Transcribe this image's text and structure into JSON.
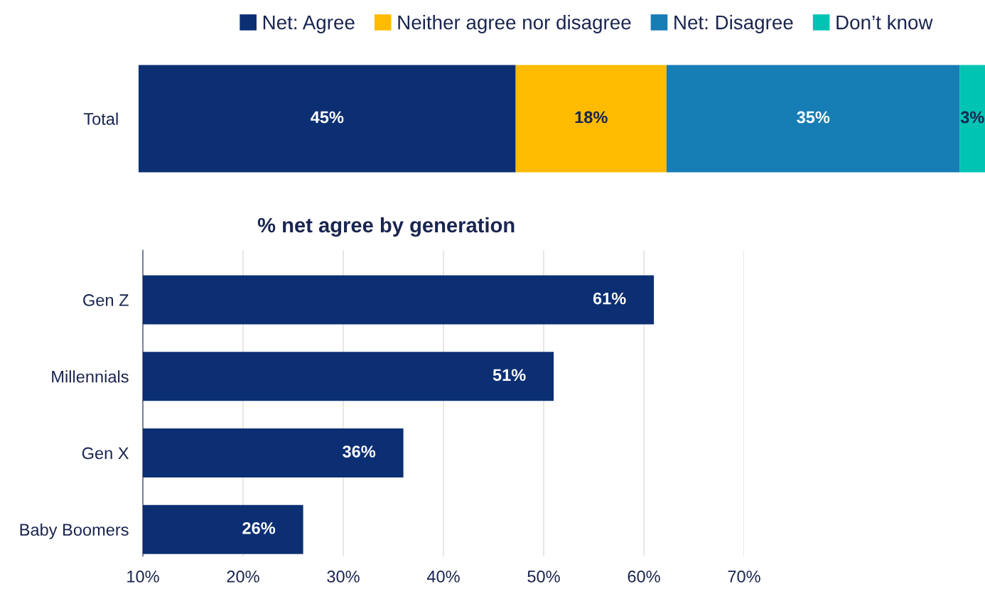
{
  "chart_data": [
    {
      "type": "bar",
      "orientation": "horizontal",
      "stacked": true,
      "categories": [
        "Total"
      ],
      "tick_labels": "y",
      "legend": "top right",
      "grid": false,
      "series": [
        {
          "name": "Net: Agree",
          "color": "#0c2f73",
          "values": [
            45
          ],
          "value_labels": [
            "45%"
          ]
        },
        {
          "name": "Neither agree nor disagree",
          "color": "#ffbb00",
          "values": [
            18
          ],
          "value_labels": [
            "18%"
          ]
        },
        {
          "name": "Net: Disagree",
          "color": "#167db5",
          "values": [
            35
          ],
          "value_labels": [
            "35%"
          ]
        },
        {
          "name": "Don’t know",
          "color": "#00c4b3",
          "values": [
            3
          ],
          "value_labels": [
            "3%"
          ]
        }
      ]
    },
    {
      "type": "bar",
      "orientation": "horizontal",
      "title": "% net agree by generation",
      "categories": [
        "Gen Z",
        "Millennials",
        "Gen X",
        "Baby Boomers"
      ],
      "values": [
        61,
        51,
        36,
        26
      ],
      "value_labels": [
        "61%",
        "51%",
        "36%",
        "26%"
      ],
      "color": "#0c2f73",
      "xlim": [
        10,
        70
      ],
      "xticks": [
        {
          "value": 10,
          "label": "10%"
        },
        {
          "value": 20,
          "label": "20%"
        },
        {
          "value": 30,
          "label": "30%"
        },
        {
          "value": 40,
          "label": "40%"
        },
        {
          "value": 50,
          "label": "50%"
        },
        {
          "value": 60,
          "label": "60%"
        },
        {
          "value": 70,
          "label": "70%"
        }
      ],
      "grid": "x"
    }
  ]
}
